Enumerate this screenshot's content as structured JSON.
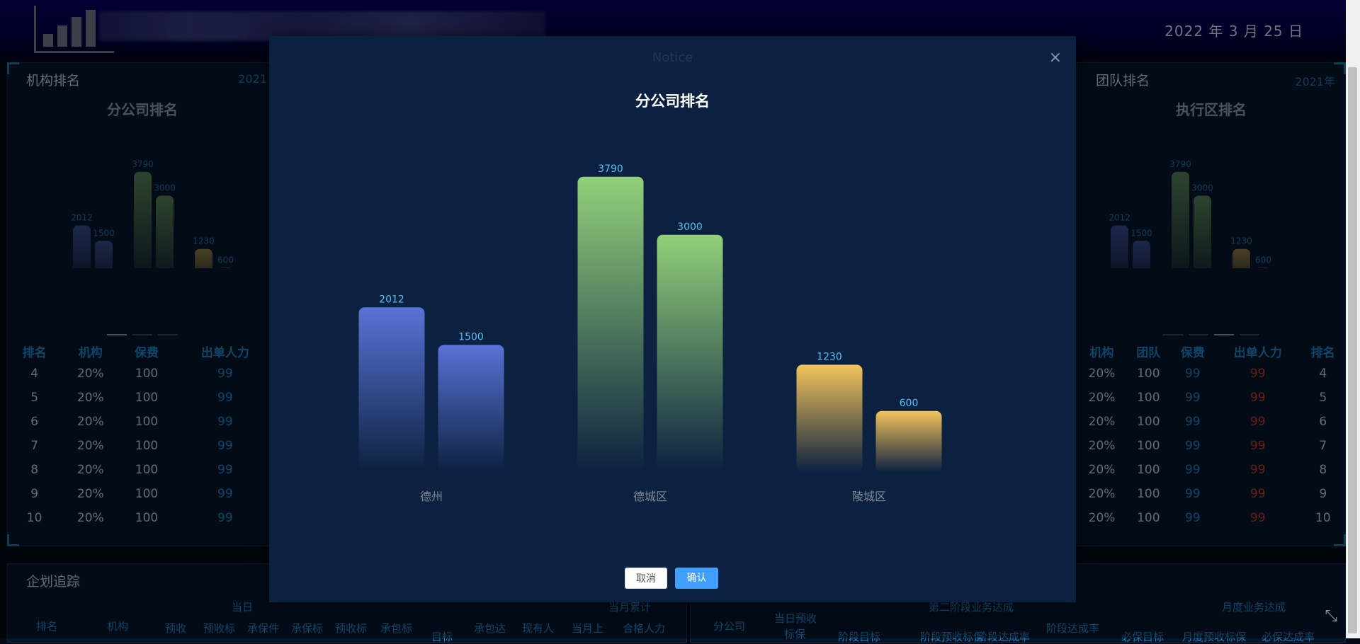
{
  "header": {
    "date": "2022 年 3 月 25 日"
  },
  "left_panel": {
    "title": "机构排名",
    "year": "2021",
    "chart_title": "分公司排名",
    "columns": [
      "排名",
      "机构",
      "保费",
      "出单人力"
    ],
    "rows": [
      [
        "4",
        "20%",
        "100",
        "99"
      ],
      [
        "5",
        "20%",
        "100",
        "99"
      ],
      [
        "6",
        "20%",
        "100",
        "99"
      ],
      [
        "7",
        "20%",
        "100",
        "99"
      ],
      [
        "8",
        "20%",
        "100",
        "99"
      ],
      [
        "9",
        "20%",
        "100",
        "99"
      ],
      [
        "10",
        "20%",
        "100",
        "99"
      ]
    ]
  },
  "right_panel": {
    "title": "团队排名",
    "year": "2021年",
    "chart_title": "执行区排名",
    "columns": [
      "机构",
      "团队",
      "保费",
      "出单人力",
      "排名"
    ],
    "rows": [
      [
        "20%",
        "100",
        "99",
        "99",
        "4"
      ],
      [
        "20%",
        "100",
        "99",
        "99",
        "5"
      ],
      [
        "20%",
        "100",
        "99",
        "99",
        "6"
      ],
      [
        "20%",
        "100",
        "99",
        "99",
        "7"
      ],
      [
        "20%",
        "100",
        "99",
        "99",
        "8"
      ],
      [
        "20%",
        "100",
        "99",
        "99",
        "9"
      ],
      [
        "20%",
        "100",
        "99",
        "99",
        "10"
      ]
    ]
  },
  "bottom_left": {
    "title": "企划追踪",
    "headers": [
      "当日",
      "当月累计",
      "排名",
      "机构",
      "预收",
      "预收标",
      "承保件",
      "承保标",
      "预收标",
      "承包标",
      "目标",
      "承包达",
      "现有人",
      "当月上",
      "合格人力"
    ]
  },
  "bottom_right": {
    "headers": [
      "第二阶段业务达成",
      "月度业务达成",
      "分公司",
      "当日预收",
      "标保",
      "阶段目标",
      "阶段预收标保",
      "阶段达成率",
      "阶段达成率",
      "必保目标",
      "月度预收标保",
      "必保达成率"
    ]
  },
  "modal": {
    "title": "Notice",
    "close_label": "×",
    "cancel_label": "取消",
    "ok_label": "确认"
  },
  "colors": {
    "blue_series": "#5a72d6",
    "green_series": "#93d07a",
    "yellow_series": "#f3c35b",
    "value_label": "#4fc3f7",
    "cancel_bg": "#ffffff",
    "ok_bg": "#409eff"
  },
  "chart_data": {
    "type": "bar",
    "title": "分公司排名",
    "categories": [
      "德州",
      "德城区",
      "陵城区"
    ],
    "series": [
      {
        "values": [
          2012,
          3790,
          1230
        ]
      },
      {
        "values": [
          1500,
          3000,
          600
        ]
      }
    ],
    "data_labels": true,
    "grid": false,
    "ylim": [
      0,
      4000
    ]
  }
}
